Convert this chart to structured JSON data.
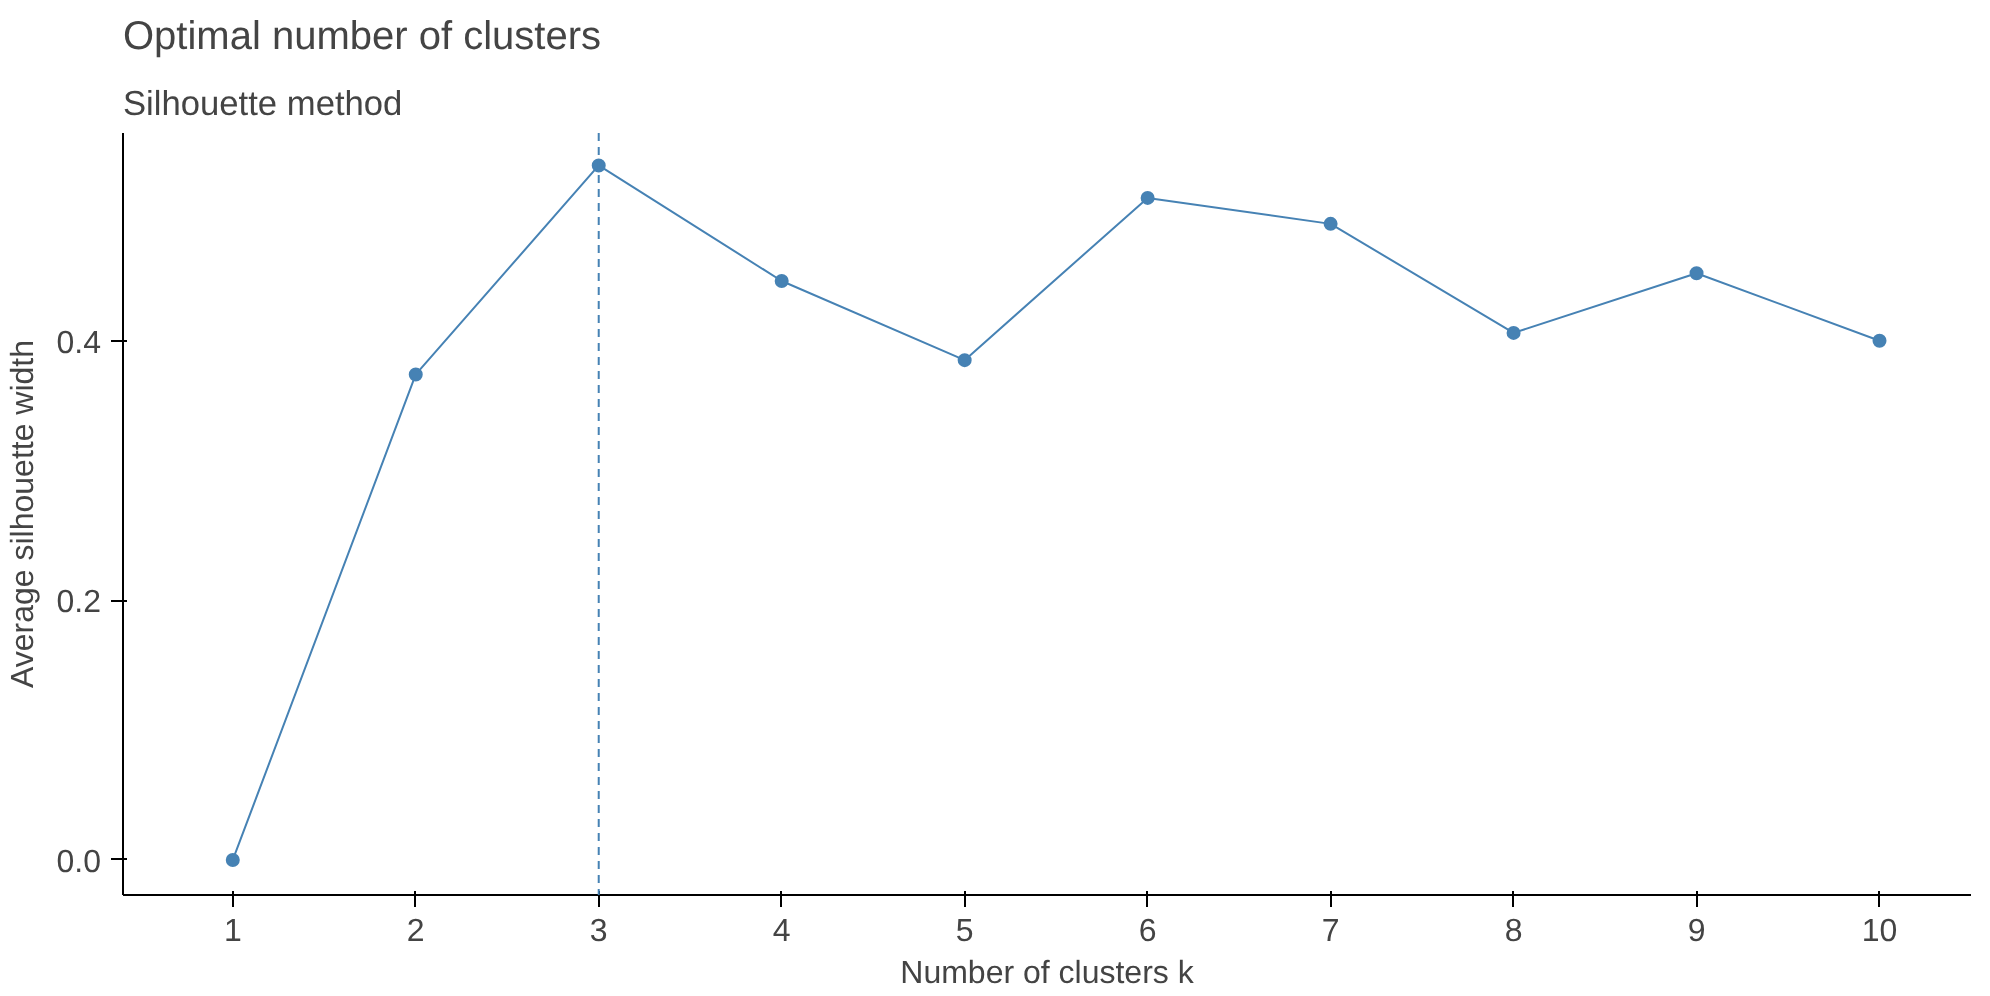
{
  "chart_data": {
    "type": "line",
    "title": "Optimal number of clusters",
    "subtitle": "Silhouette method",
    "xlabel": "Number of clusters k",
    "ylabel": "Average silhouette width",
    "x": [
      1,
      2,
      3,
      4,
      5,
      6,
      7,
      8,
      9,
      10
    ],
    "series": [
      {
        "color": "#4682b4",
        "values": [
          0.0,
          0.374,
          0.535,
          0.446,
          0.385,
          0.51,
          0.49,
          0.406,
          0.452,
          0.4
        ]
      }
    ],
    "xlim": [
      0.4,
      10.5
    ],
    "xticks": [
      1,
      2,
      3,
      4,
      5,
      6,
      7,
      8,
      9,
      10
    ],
    "ylim": [
      -0.027,
      0.56
    ],
    "yticks": [
      {
        "value": 0,
        "label": "0.0"
      },
      {
        "value": 0.2,
        "label": "0.2"
      },
      {
        "value": 0.4,
        "label": "0.4"
      }
    ],
    "ref_lines": [
      {
        "axis": "x",
        "value": 3,
        "color": "#4682b4",
        "line_style": "dashed"
      }
    ],
    "grid": false,
    "marker": "circle",
    "line_style": "solid"
  }
}
